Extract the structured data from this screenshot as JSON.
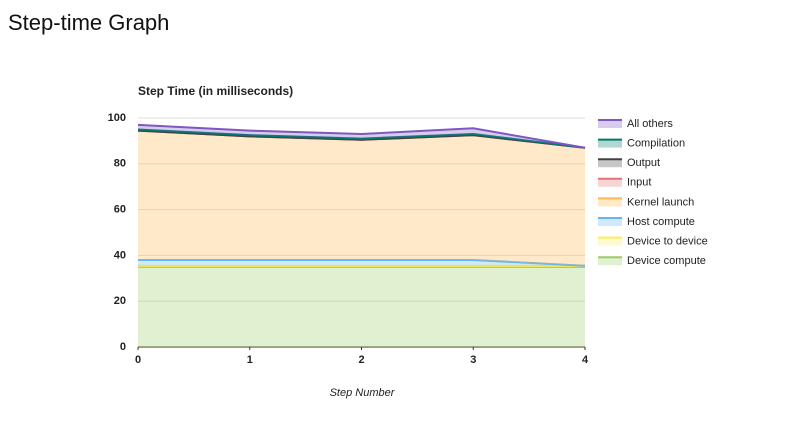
{
  "page_title": "Step-time Graph",
  "chart_data": {
    "type": "stacked-area",
    "title": "Step Time (in milliseconds)",
    "x_label": "Step Number",
    "x": [
      0,
      1,
      2,
      3,
      4
    ],
    "xlim": [
      0,
      4
    ],
    "xticks": [
      0,
      1,
      2,
      3,
      4
    ],
    "ylim": [
      0,
      100
    ],
    "yticks": [
      0,
      20,
      40,
      60,
      80,
      100
    ],
    "grid": true,
    "legend": "right",
    "series": [
      {
        "name": "Device compute",
        "color": "#9ccc65",
        "values": [
          35,
          35,
          35,
          35,
          35
        ]
      },
      {
        "name": "Device to device",
        "color": "#ffee58",
        "values": [
          0.5,
          0.5,
          0.5,
          0.5,
          0.5
        ]
      },
      {
        "name": "Host compute",
        "color": "#64b5f6",
        "values": [
          2.5,
          2.5,
          2.5,
          2.5,
          0
        ]
      },
      {
        "name": "Kernel launch",
        "color": "#ffb74d",
        "values": [
          56.5,
          54,
          52.5,
          54.5,
          51.5
        ]
      },
      {
        "name": "Input",
        "color": "#e57373",
        "values": [
          0,
          0,
          0,
          0,
          0
        ]
      },
      {
        "name": "Output",
        "color": "#424242",
        "values": [
          0,
          0,
          0,
          0,
          0
        ]
      },
      {
        "name": "Compilation",
        "color": "#00796b",
        "values": [
          0.5,
          0.5,
          0.5,
          0.5,
          0
        ]
      },
      {
        "name": "All others",
        "color": "#7e57c2",
        "values": [
          2,
          2,
          2,
          2.5,
          0
        ]
      }
    ]
  }
}
